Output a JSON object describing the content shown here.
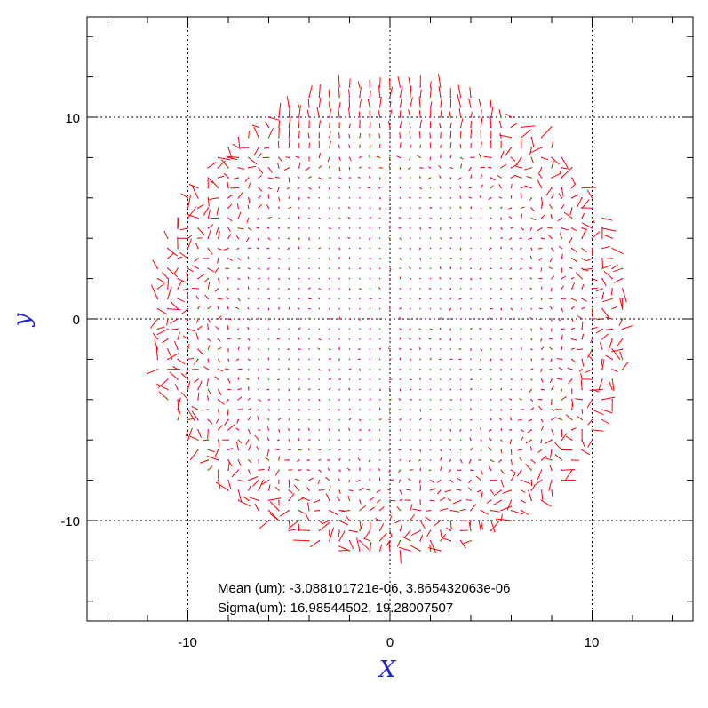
{
  "chart_data": {
    "type": "scatter",
    "subtype": "vector-field",
    "title": "",
    "xlabel": "X",
    "ylabel": "y",
    "xlim": [
      -15,
      15
    ],
    "ylim": [
      -15,
      15
    ],
    "x_tick_labels": [
      "-10",
      "0",
      "10"
    ],
    "y_tick_labels": [
      "10",
      "0",
      "-10"
    ],
    "grid": "dotted at -10, 0, 10",
    "field_radius": 11.8,
    "grid_spacing": 0.5,
    "colors": {
      "vector": "#ff0000",
      "point_primary": "#cc00cc",
      "point_secondary": "#00aa00",
      "grid": "#000000",
      "axis_title": "#2222cc"
    },
    "annotations": {
      "mean": "Mean (um): -3.088101721e-06, 3.865432063e-06",
      "sigma": "Sigma(um): 16.98544502, 19.28007507"
    }
  }
}
